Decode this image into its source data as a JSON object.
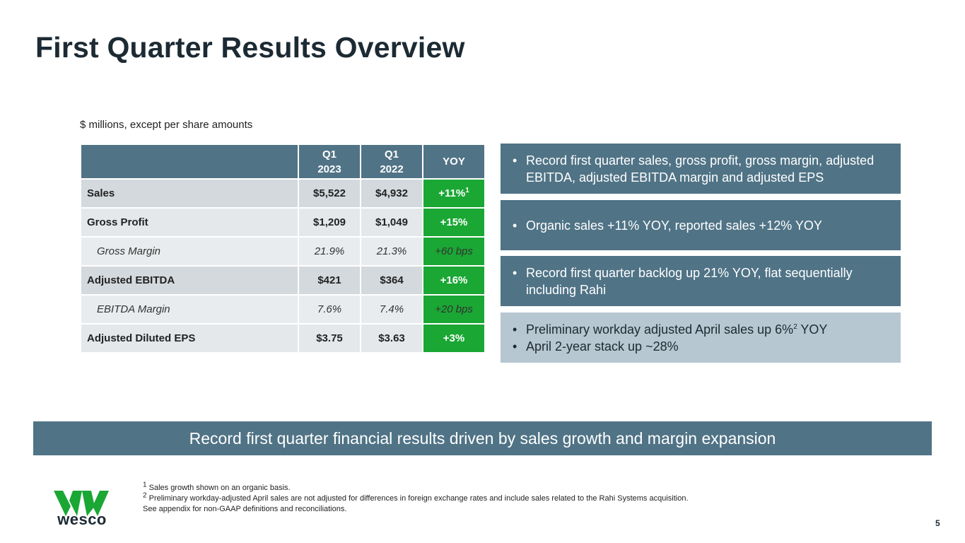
{
  "title": "First Quarter Results Overview",
  "subtitle": "$ millions, except per share amounts",
  "table": {
    "headers": {
      "q1_2023_line1": "Q1",
      "q1_2023_line2": "2023",
      "q1_2022_line1": "Q1",
      "q1_2022_line2": "2022",
      "yoy": "YOY"
    },
    "rows": [
      {
        "label": "Sales",
        "q1_2023": "$5,522",
        "q1_2022": "$4,932",
        "yoy": "+11%",
        "yoy_sup": "1"
      },
      {
        "label": "Gross Profit",
        "q1_2023": "$1,209",
        "q1_2022": "$1,049",
        "yoy": "+15%"
      },
      {
        "label": "Gross Margin",
        "q1_2023": "21.9%",
        "q1_2022": "21.3%",
        "yoy": "+60 bps"
      },
      {
        "label": "Adjusted EBITDA",
        "q1_2023": "$421",
        "q1_2022": "$364",
        "yoy": "+16%"
      },
      {
        "label": "EBITDA Margin",
        "q1_2023": "7.6%",
        "q1_2022": "7.4%",
        "yoy": "+20 bps"
      },
      {
        "label": "Adjusted Diluted EPS",
        "q1_2023": "$3.75",
        "q1_2022": "$3.63",
        "yoy": "+3%"
      }
    ]
  },
  "highlights": {
    "p1": "Record first quarter sales, gross profit, gross margin, adjusted EBITDA, adjusted EBITDA margin and adjusted EPS",
    "p2": "Organic sales +11% YOY, reported sales +12% YOY",
    "p3": "Record first quarter backlog up 21% YOY, flat sequentially including Rahi",
    "p4a_pre": "Preliminary workday adjusted April sales up 6%",
    "p4a_sup": "2",
    "p4a_post": " YOY",
    "p4b": "April 2-year stack up ~28%",
    "bullet": "•"
  },
  "banner": "Record first quarter financial results driven by sales growth and margin expansion",
  "footnotes": {
    "n1_mark": "1",
    "n1": " Sales growth shown on an organic basis.",
    "n2_mark": "2",
    "n2": " Preliminary workday-adjusted April sales are not adjusted for differences in foreign exchange rates and include sales related to the Rahi Systems acquisition.",
    "n3": "See appendix for non-GAAP definitions and reconciliations."
  },
  "logo_text": "wesco",
  "page_number": "5",
  "colors": {
    "accent": "#507386",
    "positive": "#1aa734",
    "light_panel": "#b6c7d1",
    "logo": "#1aa734"
  }
}
